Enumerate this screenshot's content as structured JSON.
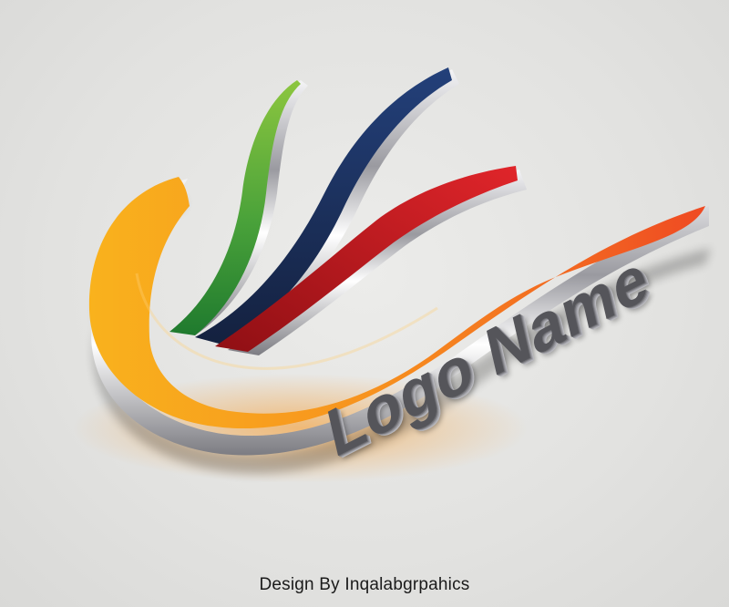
{
  "logo": {
    "brand_text": "Logo Name",
    "credit_text": "Design By Inqalabgrpahics",
    "colors": {
      "green_top": "#8cc63f",
      "green_bottom": "#1f7a2e",
      "navy": "#1c2f5e",
      "red": "#c8161d",
      "orange_light": "#f9b21d",
      "orange_dark": "#ef4a23",
      "chrome": "#c9c9cc",
      "background": "#e4e4e2",
      "text": "#55555a"
    }
  }
}
